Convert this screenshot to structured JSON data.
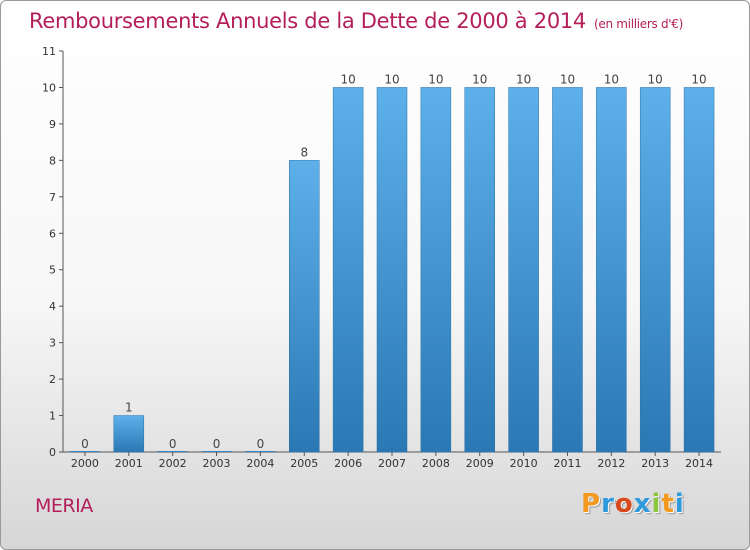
{
  "commune": "MERIA",
  "logo_text": "Proxiti",
  "logo_colors": [
    "#f39a1e",
    "#2c9adb",
    "#d84a1b",
    "#2c9adb",
    "#8cc63f",
    "#f39a1e",
    "#2c9adb"
  ],
  "chart_data": {
    "type": "bar",
    "title": "Remboursements Annuels de la Dette de 2000 à 2014",
    "unit_note": "(en milliers d'€)",
    "xlabel": "",
    "ylabel": "",
    "categories": [
      "2000",
      "2001",
      "2002",
      "2003",
      "2004",
      "2005",
      "2006",
      "2007",
      "2008",
      "2009",
      "2010",
      "2011",
      "2012",
      "2013",
      "2014"
    ],
    "values": [
      0,
      1,
      0,
      0,
      0,
      8,
      10,
      10,
      10,
      10,
      10,
      10,
      10,
      10,
      10
    ],
    "ylim": [
      0,
      11
    ],
    "yticks": [
      0,
      1,
      2,
      3,
      4,
      5,
      6,
      7,
      8,
      9,
      10,
      11
    ],
    "grid": false,
    "legend": "none",
    "bar_color_top": "#5db0ea",
    "bar_color_bottom": "#2a78b4",
    "title_color": "#b41e5a"
  }
}
